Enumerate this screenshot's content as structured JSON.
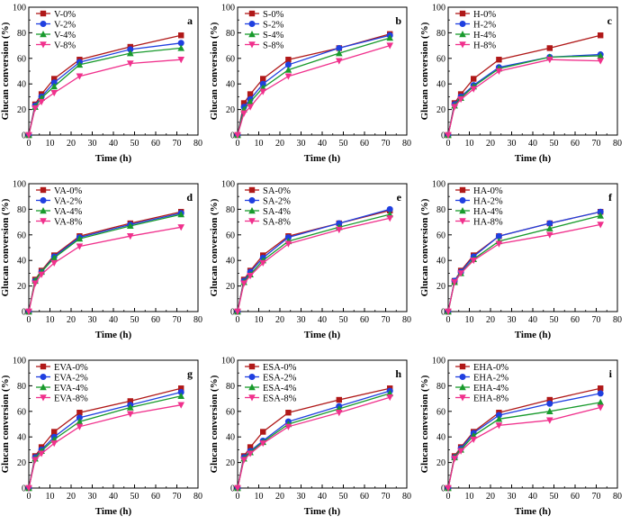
{
  "colors": {
    "0%": "#b01818",
    "2%": "#1f3fe0",
    "4%": "#189a2c",
    "8%": "#f0308c"
  },
  "markers": {
    "0%": "square",
    "2%": "circle",
    "4%": "triangle-up",
    "8%": "triangle-down"
  },
  "chart_data": [
    {
      "type": "line",
      "panel": "a",
      "xlabel": "Time (h)",
      "ylabel": "Glucan conversion (%)",
      "xlim": [
        0,
        80
      ],
      "ylim": [
        0,
        100
      ],
      "xticks": [
        0,
        10,
        20,
        30,
        40,
        50,
        60,
        70,
        80
      ],
      "yticks": [
        0,
        20,
        40,
        60,
        80,
        100
      ],
      "x": [
        0,
        3,
        6,
        12,
        24,
        48,
        72
      ],
      "series": [
        {
          "name": "V-0%",
          "values": [
            0,
            24,
            32,
            44,
            59,
            69,
            78
          ]
        },
        {
          "name": "V-2%",
          "values": [
            0,
            23,
            30,
            41,
            57,
            67,
            72
          ]
        },
        {
          "name": "V-4%",
          "values": [
            0,
            22,
            29,
            38,
            55,
            64,
            68
          ]
        },
        {
          "name": "V-8%",
          "values": [
            0,
            21,
            26,
            33,
            46,
            56,
            59
          ]
        }
      ]
    },
    {
      "type": "line",
      "panel": "b",
      "xlabel": "Time (h)",
      "ylabel": "Glucan conversion (%)",
      "xlim": [
        0,
        80
      ],
      "ylim": [
        0,
        100
      ],
      "xticks": [
        0,
        10,
        20,
        30,
        40,
        50,
        60,
        70,
        80
      ],
      "yticks": [
        0,
        20,
        40,
        60,
        80,
        100
      ],
      "x": [
        0,
        3,
        6,
        12,
        24,
        48,
        72
      ],
      "series": [
        {
          "name": "S-0%",
          "values": [
            0,
            25,
            32,
            44,
            59,
            68,
            79
          ]
        },
        {
          "name": "S-2%",
          "values": [
            0,
            22,
            28,
            40,
            55,
            68,
            78
          ]
        },
        {
          "name": "S-4%",
          "values": [
            0,
            20,
            26,
            37,
            51,
            64,
            76
          ]
        },
        {
          "name": "S-8%",
          "values": [
            0,
            17,
            22,
            34,
            46,
            58,
            70
          ]
        }
      ]
    },
    {
      "type": "line",
      "panel": "c",
      "xlabel": "Time (h)",
      "ylabel": "Glucan conversion (%)",
      "xlim": [
        0,
        80
      ],
      "ylim": [
        0,
        100
      ],
      "xticks": [
        0,
        10,
        20,
        30,
        40,
        50,
        60,
        70,
        80
      ],
      "yticks": [
        0,
        20,
        40,
        60,
        80,
        100
      ],
      "x": [
        0,
        3,
        6,
        12,
        24,
        48,
        72
      ],
      "series": [
        {
          "name": "H-0%",
          "values": [
            0,
            25,
            32,
            44,
            59,
            68,
            78
          ]
        },
        {
          "name": "H-2%",
          "values": [
            0,
            24,
            30,
            39,
            53,
            61,
            63
          ]
        },
        {
          "name": "H-4%",
          "values": [
            0,
            23,
            29,
            38,
            52,
            61,
            62
          ]
        },
        {
          "name": "H-8%",
          "values": [
            0,
            22,
            28,
            36,
            50,
            59,
            58
          ]
        }
      ]
    },
    {
      "type": "line",
      "panel": "d",
      "xlabel": "Time (h)",
      "ylabel": "Glucan conversion (%)",
      "xlim": [
        0,
        80
      ],
      "ylim": [
        0,
        100
      ],
      "xticks": [
        0,
        10,
        20,
        30,
        40,
        50,
        60,
        70,
        80
      ],
      "yticks": [
        0,
        20,
        40,
        60,
        80,
        100
      ],
      "x": [
        0,
        3,
        6,
        12,
        24,
        48,
        72
      ],
      "series": [
        {
          "name": "VA-0%",
          "values": [
            0,
            25,
            32,
            44,
            59,
            69,
            78
          ]
        },
        {
          "name": "VA-2%",
          "values": [
            0,
            24,
            31,
            43,
            58,
            68,
            77
          ]
        },
        {
          "name": "VA-4%",
          "values": [
            0,
            24,
            31,
            42,
            57,
            67,
            76
          ]
        },
        {
          "name": "VA-8%",
          "values": [
            0,
            22,
            29,
            38,
            51,
            59,
            66
          ]
        }
      ]
    },
    {
      "type": "line",
      "panel": "e",
      "xlabel": "Time (h)",
      "ylabel": "Glucan conversion (%)",
      "xlim": [
        0,
        80
      ],
      "ylim": [
        0,
        100
      ],
      "xticks": [
        0,
        10,
        20,
        30,
        40,
        50,
        60,
        70,
        80
      ],
      "yticks": [
        0,
        20,
        40,
        60,
        80,
        100
      ],
      "x": [
        0,
        3,
        6,
        12,
        24,
        48,
        72
      ],
      "series": [
        {
          "name": "SA-0%",
          "values": [
            0,
            25,
            32,
            44,
            59,
            69,
            79
          ]
        },
        {
          "name": "SA-2%",
          "values": [
            0,
            24,
            31,
            42,
            58,
            69,
            80
          ]
        },
        {
          "name": "SA-4%",
          "values": [
            0,
            23,
            29,
            40,
            55,
            66,
            76
          ]
        },
        {
          "name": "SA-8%",
          "values": [
            0,
            22,
            28,
            38,
            53,
            64,
            73
          ]
        }
      ]
    },
    {
      "type": "line",
      "panel": "f",
      "xlabel": "Time (h)",
      "ylabel": "Glucan conversion (%)",
      "xlim": [
        0,
        80
      ],
      "ylim": [
        0,
        100
      ],
      "xticks": [
        0,
        10,
        20,
        30,
        40,
        50,
        60,
        70,
        80
      ],
      "yticks": [
        0,
        20,
        40,
        60,
        80,
        100
      ],
      "x": [
        0,
        3,
        6,
        12,
        24,
        48,
        72
      ],
      "series": [
        {
          "name": "HA-0%",
          "values": [
            0,
            24,
            32,
            44,
            59,
            69,
            78
          ]
        },
        {
          "name": "HA-2%",
          "values": [
            0,
            24,
            31,
            43,
            59,
            69,
            78
          ]
        },
        {
          "name": "HA-4%",
          "values": [
            0,
            23,
            30,
            41,
            55,
            65,
            75
          ]
        },
        {
          "name": "HA-8%",
          "values": [
            0,
            23,
            30,
            40,
            53,
            60,
            68
          ]
        }
      ]
    },
    {
      "type": "line",
      "panel": "g",
      "xlabel": "Time (h)",
      "ylabel": "Glucan conversion (%)",
      "xlim": [
        0,
        80
      ],
      "ylim": [
        0,
        100
      ],
      "xticks": [
        0,
        10,
        20,
        30,
        40,
        50,
        60,
        70,
        80
      ],
      "yticks": [
        0,
        20,
        40,
        60,
        80,
        100
      ],
      "x": [
        0,
        3,
        6,
        12,
        24,
        48,
        72
      ],
      "series": [
        {
          "name": "EVA-0%",
          "values": [
            0,
            25,
            32,
            44,
            59,
            68,
            78
          ]
        },
        {
          "name": "EVA-2%",
          "values": [
            0,
            24,
            30,
            40,
            55,
            65,
            75
          ]
        },
        {
          "name": "EVA-4%",
          "values": [
            0,
            23,
            29,
            38,
            52,
            63,
            72
          ]
        },
        {
          "name": "EVA-8%",
          "values": [
            0,
            22,
            27,
            35,
            48,
            58,
            65
          ]
        }
      ]
    },
    {
      "type": "line",
      "panel": "h",
      "xlabel": "Time (h)",
      "ylabel": "Glucan conversion (%)",
      "xlim": [
        0,
        80
      ],
      "ylim": [
        0,
        100
      ],
      "xticks": [
        0,
        10,
        20,
        30,
        40,
        50,
        60,
        70,
        80
      ],
      "yticks": [
        0,
        20,
        40,
        60,
        80,
        100
      ],
      "x": [
        0,
        3,
        6,
        12,
        24,
        48,
        72
      ],
      "series": [
        {
          "name": "ESA-0%",
          "values": [
            0,
            25,
            32,
            44,
            59,
            69,
            78
          ]
        },
        {
          "name": "ESA-2%",
          "values": [
            0,
            24,
            29,
            37,
            52,
            64,
            76
          ]
        },
        {
          "name": "ESA-4%",
          "values": [
            0,
            23,
            28,
            36,
            50,
            62,
            74
          ]
        },
        {
          "name": "ESA-8%",
          "values": [
            0,
            22,
            27,
            35,
            48,
            59,
            71
          ]
        }
      ]
    },
    {
      "type": "line",
      "panel": "i",
      "xlabel": "Time (h)",
      "ylabel": "Glucan conversion (%)",
      "xlim": [
        0,
        80
      ],
      "ylim": [
        0,
        100
      ],
      "xticks": [
        0,
        10,
        20,
        30,
        40,
        50,
        60,
        70,
        80
      ],
      "yticks": [
        0,
        20,
        40,
        60,
        80,
        100
      ],
      "x": [
        0,
        3,
        6,
        12,
        24,
        48,
        72
      ],
      "series": [
        {
          "name": "EHA-0%",
          "values": [
            0,
            25,
            32,
            44,
            59,
            69,
            78
          ]
        },
        {
          "name": "EHA-2%",
          "values": [
            0,
            24,
            31,
            43,
            57,
            66,
            74
          ]
        },
        {
          "name": "EHA-4%",
          "values": [
            0,
            24,
            30,
            41,
            54,
            60,
            67
          ]
        },
        {
          "name": "EHA-8%",
          "values": [
            0,
            23,
            29,
            38,
            49,
            53,
            63
          ]
        }
      ]
    }
  ]
}
